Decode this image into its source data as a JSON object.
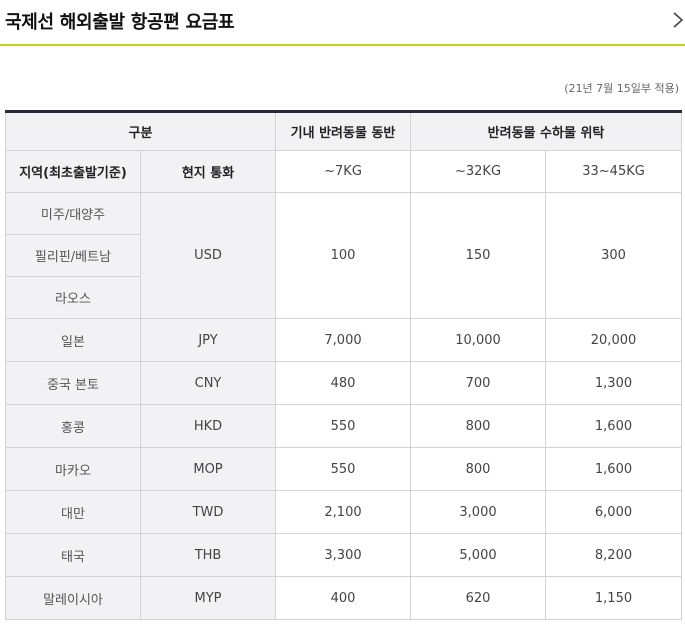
{
  "header": {
    "title": "국제선 해외출발 항공편 요금표",
    "close_icon": "chevron-right-icon"
  },
  "note": "(21년 7월 15일부 적용)",
  "table": {
    "head1": {
      "category": "구분",
      "cabin": "기내 반려동물 동반",
      "cargo": "반려동물 수하물 위탁"
    },
    "head2": {
      "region": "지역(최초출발기준)",
      "currency": "현지 통화",
      "w1": "~7KG",
      "w2": "~32KG",
      "w3": "33~45KG"
    },
    "usd_group": {
      "regions": [
        "미주/대양주",
        "필리핀/베트남",
        "라오스"
      ],
      "currency": "USD",
      "values": [
        "100",
        "150",
        "300"
      ]
    },
    "rows": [
      {
        "region": "일본",
        "currency": "JPY",
        "values": [
          "7,000",
          "10,000",
          "20,000"
        ]
      },
      {
        "region": "중국 본토",
        "currency": "CNY",
        "values": [
          "480",
          "700",
          "1,300"
        ]
      },
      {
        "region": "홍콩",
        "currency": "HKD",
        "values": [
          "550",
          "800",
          "1,600"
        ]
      },
      {
        "region": "마카오",
        "currency": "MOP",
        "values": [
          "550",
          "800",
          "1,600"
        ]
      },
      {
        "region": "대만",
        "currency": "TWD",
        "values": [
          "2,100",
          "3,000",
          "6,000"
        ]
      },
      {
        "region": "태국",
        "currency": "THB",
        "values": [
          "3,300",
          "5,000",
          "8,200"
        ]
      },
      {
        "region": "말레이시아",
        "currency": "MYP",
        "values": [
          "400",
          "620",
          "1,150"
        ]
      }
    ]
  },
  "colors": {
    "accent_line": "#c8d21e",
    "table_top_border": "#2b2b3a",
    "header_bg": "#f2f2f5",
    "grid": "#d3d3d3"
  }
}
